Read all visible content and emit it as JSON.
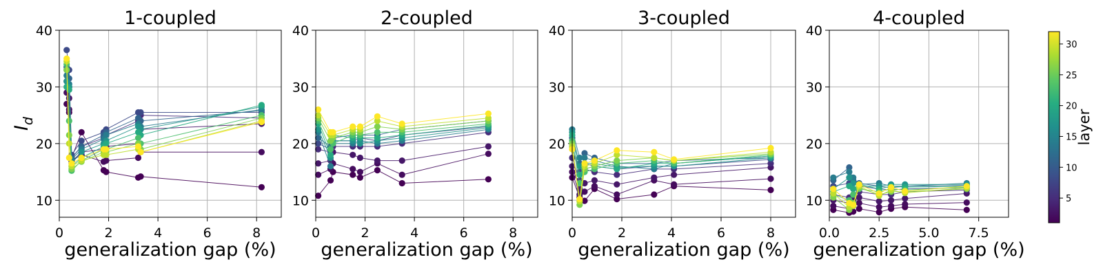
{
  "chart_data": {
    "type": "line",
    "subtype": "scatter-line",
    "ylabel": "I_d",
    "ylim": [
      7,
      40
    ],
    "yticks": [
      10,
      20,
      30,
      40
    ],
    "grid": true,
    "colorbar": {
      "label": "layer",
      "range": [
        1,
        32
      ],
      "ticks": [
        5,
        10,
        15,
        20,
        25,
        30
      ],
      "colormap": "viridis",
      "stops": [
        "#440154",
        "#472c7a",
        "#3b518b",
        "#2c718e",
        "#21908d",
        "#27ad81",
        "#5cc863",
        "#aadc32",
        "#fde725"
      ]
    },
    "layer_lines": {
      "comment": "one series per layer; each line connects points at the listed x (generalization gap %)"
    },
    "panels": [
      {
        "title": "1-coupled",
        "xlabel": "generalization gap (%)",
        "xlim": [
          0,
          9
        ],
        "xticks": [
          0,
          2,
          4,
          6,
          8
        ],
        "xtick_labels": [
          "0",
          "2",
          "4",
          "6",
          "8"
        ],
        "x": [
          0.3,
          0.4,
          0.5,
          0.9,
          1.8,
          1.9,
          3.2,
          3.3,
          8.2
        ],
        "series": [
          {
            "layer": 1,
            "values": [
              27.0,
              25.5,
              17.5,
              22.0,
              15.3,
              15.0,
              14.0,
              14.2,
              12.3
            ]
          },
          {
            "layer": 2,
            "values": [
              29.0,
              26.0,
              17.0,
              18.0,
              16.8,
              17.0,
              17.5,
              18.5,
              18.5
            ]
          },
          {
            "layer": 3,
            "values": [
              31.0,
              28.0,
              16.8,
              18.5,
              19.0,
              19.5,
              20.0,
              22.5,
              23.5
            ]
          },
          {
            "layer": 5,
            "values": [
              33.0,
              30.0,
              17.5,
              19.5,
              21.0,
              21.5,
              24.0,
              25.0,
              24.5
            ]
          },
          {
            "layer": 8,
            "values": [
              36.5,
              33.0,
              18.0,
              20.5,
              22.0,
              22.5,
              25.5,
              25.5,
              25.5
            ]
          },
          {
            "layer": 11,
            "values": [
              33.5,
              31.5,
              17.5,
              19.5,
              21.5,
              22.0,
              24.5,
              24.0,
              25.8
            ]
          },
          {
            "layer": 14,
            "values": [
              32.0,
              30.5,
              17.2,
              19.0,
              20.8,
              21.5,
              23.5,
              23.0,
              26.0
            ]
          },
          {
            "layer": 17,
            "values": [
              31.0,
              30.0,
              16.5,
              18.5,
              20.0,
              20.5,
              23.0,
              22.5,
              26.5
            ]
          },
          {
            "layer": 20,
            "values": [
              30.0,
              29.5,
              16.0,
              17.5,
              19.5,
              20.0,
              22.0,
              21.5,
              26.8
            ]
          },
          {
            "layer": 23,
            "values": [
              34.0,
              24.0,
              15.2,
              17.0,
              19.0,
              19.0,
              21.0,
              20.0,
              25.0
            ]
          },
          {
            "layer": 26,
            "values": [
              33.0,
              21.5,
              15.5,
              16.8,
              18.5,
              18.5,
              20.0,
              19.0,
              24.5
            ]
          },
          {
            "layer": 29,
            "values": [
              34.5,
              20.0,
              16.0,
              17.0,
              18.0,
              18.0,
              19.0,
              18.5,
              24.0
            ]
          },
          {
            "layer": 32,
            "values": [
              35.0,
              17.5,
              16.5,
              17.5,
              19.0,
              19.0,
              19.5,
              18.5,
              23.8
            ]
          }
        ]
      },
      {
        "title": "2-coupled",
        "xlabel": "generalization gap (%)",
        "xlim": [
          0,
          9
        ],
        "xticks": [
          0,
          2,
          4,
          6,
          8
        ],
        "xtick_labels": [
          "0",
          "2",
          "4",
          "6",
          "8"
        ],
        "x": [
          0.1,
          0.6,
          0.7,
          1.5,
          1.8,
          2.5,
          3.5,
          7.0
        ],
        "series": [
          {
            "layer": 1,
            "values": [
              10.8,
              13.5,
              15.0,
              14.5,
              14.0,
              15.3,
              13.0,
              13.7
            ]
          },
          {
            "layer": 2,
            "values": [
              14.5,
              15.5,
              16.5,
              15.5,
              15.0,
              16.5,
              14.5,
              18.2
            ]
          },
          {
            "layer": 3,
            "values": [
              16.5,
              17.0,
              18.5,
              18.0,
              17.5,
              17.0,
              17.0,
              19.5
            ]
          },
          {
            "layer": 5,
            "values": [
              19.0,
              18.5,
              19.5,
              19.5,
              19.5,
              19.5,
              20.0,
              22.0
            ]
          },
          {
            "layer": 8,
            "values": [
              20.0,
              19.0,
              20.5,
              20.5,
              21.0,
              20.5,
              21.5,
              23.0
            ]
          },
          {
            "layer": 11,
            "values": [
              21.0,
              19.5,
              21.0,
              21.5,
              21.5,
              21.5,
              22.5,
              24.0
            ]
          },
          {
            "layer": 14,
            "values": [
              22.0,
              16.0,
              20.0,
              20.0,
              20.5,
              20.0,
              20.5,
              22.5
            ]
          },
          {
            "layer": 17,
            "values": [
              22.5,
              17.5,
              20.5,
              20.5,
              20.0,
              20.5,
              21.0,
              22.8
            ]
          },
          {
            "layer": 20,
            "values": [
              23.5,
              18.0,
              21.5,
              21.0,
              21.0,
              21.0,
              21.5,
              23.2
            ]
          },
          {
            "layer": 23,
            "values": [
              24.0,
              19.0,
              20.0,
              21.5,
              21.5,
              22.0,
              22.0,
              23.5
            ]
          },
          {
            "layer": 26,
            "values": [
              24.5,
              20.5,
              21.0,
              22.0,
              22.0,
              23.0,
              22.5,
              24.0
            ]
          },
          {
            "layer": 29,
            "values": [
              25.0,
              21.5,
              21.5,
              22.5,
              22.5,
              24.0,
              23.0,
              24.5
            ]
          },
          {
            "layer": 32,
            "values": [
              26.0,
              22.0,
              22.0,
              23.0,
              23.0,
              24.8,
              23.5,
              25.3
            ]
          }
        ]
      },
      {
        "title": "3-coupled",
        "xlabel": "generalization gap (%)",
        "xlim": [
          0,
          9
        ],
        "xticks": [
          0,
          2,
          4,
          6,
          8
        ],
        "xtick_labels": [
          "0",
          "2",
          "4",
          "6",
          "8"
        ],
        "x": [
          0.0,
          0.3,
          0.5,
          0.9,
          1.8,
          3.3,
          4.1,
          8.0
        ],
        "series": [
          {
            "layer": 1,
            "values": [
              14.0,
              10.5,
              9.9,
              12.0,
              10.2,
              11.0,
              12.5,
              11.8
            ]
          },
          {
            "layer": 2,
            "values": [
              15.0,
              11.0,
              11.5,
              12.5,
              11.0,
              13.5,
              12.8,
              13.8
            ]
          },
          {
            "layer": 3,
            "values": [
              16.0,
              12.0,
              13.0,
              13.5,
              12.8,
              14.0,
              14.5,
              15.8
            ]
          },
          {
            "layer": 5,
            "values": [
              17.5,
              13.5,
              15.5,
              15.0,
              14.5,
              15.5,
              15.5,
              16.5
            ]
          },
          {
            "layer": 8,
            "values": [
              19.5,
              15.0,
              16.5,
              16.0,
              15.5,
              16.0,
              16.0,
              17.2
            ]
          },
          {
            "layer": 11,
            "values": [
              21.0,
              16.5,
              18.3,
              17.5,
              16.5,
              16.5,
              17.0,
              17.5
            ]
          },
          {
            "layer": 14,
            "values": [
              22.5,
              17.5,
              17.5,
              17.0,
              16.0,
              15.5,
              16.5,
              17.8
            ]
          },
          {
            "layer": 17,
            "values": [
              22.0,
              16.0,
              16.5,
              16.5,
              15.8,
              16.0,
              16.0,
              17.5
            ]
          },
          {
            "layer": 20,
            "values": [
              21.5,
              14.5,
              15.5,
              16.0,
              15.5,
              16.5,
              16.5,
              17.8
            ]
          },
          {
            "layer": 23,
            "values": [
              20.5,
              13.0,
              15.0,
              15.5,
              16.5,
              17.0,
              16.5,
              18.0
            ]
          },
          {
            "layer": 26,
            "values": [
              20.0,
              9.2,
              15.5,
              16.0,
              17.0,
              17.5,
              17.0,
              18.2
            ]
          },
          {
            "layer": 29,
            "values": [
              19.5,
              9.8,
              16.0,
              16.5,
              18.0,
              17.5,
              17.0,
              18.5
            ]
          },
          {
            "layer": 32,
            "values": [
              19.0,
              10.2,
              16.5,
              17.0,
              18.8,
              18.5,
              17.2,
              19.2
            ]
          }
        ]
      },
      {
        "title": "4-coupled",
        "xlabel": "generalization gap (%)",
        "xlim": [
          0,
          9
        ],
        "xticks": [
          0,
          2.5,
          5,
          7.5
        ],
        "xtick_labels": [
          "0.0",
          "2.5",
          "5.0",
          "7.5"
        ],
        "x": [
          0.2,
          1.0,
          1.2,
          1.5,
          2.5,
          3.1,
          3.8,
          6.9
        ],
        "series": [
          {
            "layer": 1,
            "values": [
              8.3,
              7.8,
              8.0,
              8.5,
              7.9,
              8.5,
              8.8,
              8.3
            ]
          },
          {
            "layer": 2,
            "values": [
              9.0,
              8.5,
              9.0,
              9.5,
              8.8,
              9.0,
              9.3,
              9.6
            ]
          },
          {
            "layer": 3,
            "values": [
              10.0,
              9.5,
              10.0,
              10.5,
              9.8,
              10.0,
              10.3,
              11.2
            ]
          },
          {
            "layer": 5,
            "values": [
              11.0,
              10.5,
              11.0,
              11.5,
              11.0,
              11.0,
              11.5,
              11.8
            ]
          },
          {
            "layer": 8,
            "values": [
              12.5,
              13.0,
              12.0,
              12.5,
              12.0,
              11.8,
              12.0,
              12.2
            ]
          },
          {
            "layer": 11,
            "values": [
              13.5,
              15.8,
              13.5,
              13.0,
              12.5,
              12.2,
              12.5,
              12.6
            ]
          },
          {
            "layer": 14,
            "values": [
              14.0,
              15.0,
              14.0,
              12.8,
              13.0,
              12.5,
              12.5,
              13.0
            ]
          },
          {
            "layer": 17,
            "values": [
              12.0,
              14.0,
              13.0,
              12.5,
              12.5,
              12.8,
              12.8,
              12.8
            ]
          },
          {
            "layer": 20,
            "values": [
              11.5,
              12.5,
              12.0,
              12.8,
              12.0,
              12.5,
              12.3,
              12.5
            ]
          },
          {
            "layer": 23,
            "values": [
              11.0,
              10.0,
              11.0,
              12.0,
              11.5,
              12.0,
              11.8,
              12.3
            ]
          },
          {
            "layer": 26,
            "values": [
              10.5,
              8.3,
              9.5,
              12.2,
              11.0,
              11.5,
              11.5,
              12.0
            ]
          },
          {
            "layer": 29,
            "values": [
              11.2,
              8.8,
              9.0,
              12.5,
              10.8,
              11.8,
              11.3,
              12.2
            ]
          },
          {
            "layer": 32,
            "values": [
              12.0,
              9.5,
              9.2,
              12.8,
              11.2,
              12.3,
              11.6,
              12.5
            ]
          }
        ]
      }
    ]
  }
}
